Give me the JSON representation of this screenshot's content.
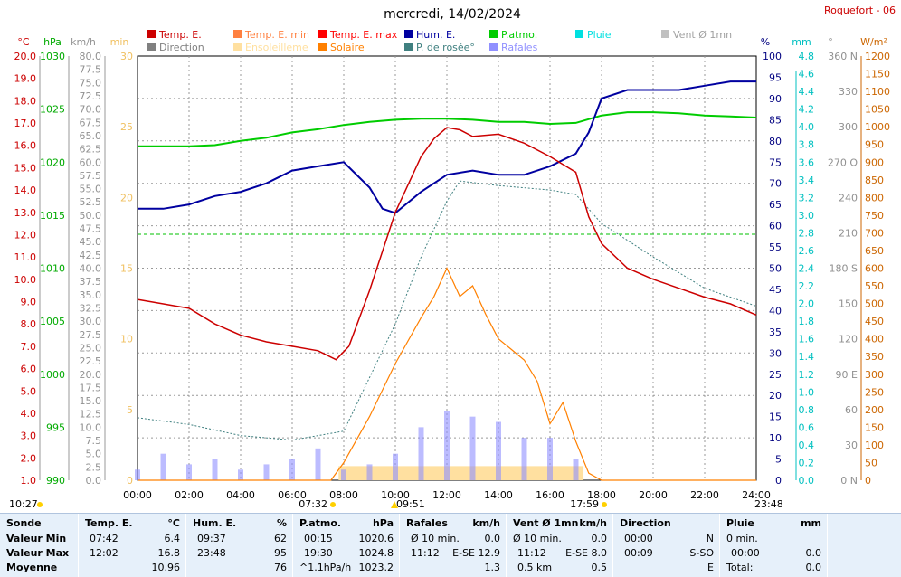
{
  "header": {
    "title": "mercredi, 14/02/2024",
    "station": "Roquefort - 06"
  },
  "legend": [
    {
      "label": "Temp. E.",
      "color": "#cc0000"
    },
    {
      "label": "Temp. E. min",
      "color": "#ff8040"
    },
    {
      "label": "Temp. E. max",
      "color": "#ff0000"
    },
    {
      "label": "Hum. E.",
      "color": "#0000a0"
    },
    {
      "label": "P.atmo.",
      "color": "#00cc00"
    },
    {
      "label": "Pluie",
      "color": "#00e0e0"
    },
    {
      "label": "Vent Ø 1mn",
      "color": "#c0c0c0"
    },
    {
      "label": "Direction",
      "color": "#808080"
    },
    {
      "label": "Ensoleilleme",
      "color": "#ffe0a0"
    },
    {
      "label": "Solaire",
      "color": "#ff8000"
    },
    {
      "label": "P. de rosée°",
      "color": "#408080"
    },
    {
      "label": "Rafales",
      "color": "#9090ff"
    }
  ],
  "axes": {
    "temp": {
      "unit": "°C",
      "ticks": [
        "20.0",
        "19.0",
        "18.0",
        "17.0",
        "16.0",
        "15.0",
        "14.0",
        "13.0",
        "12.0",
        "11.0",
        "10.0",
        "9.0",
        "8.0",
        "7.0",
        "6.0",
        "5.0",
        "4.0",
        "3.0",
        "2.0",
        "1.0"
      ],
      "color": "#cc0000"
    },
    "press": {
      "unit": "hPa",
      "ticks": [
        "1030",
        "1025",
        "1020",
        "1015",
        "1010",
        "1005",
        "1000",
        "995",
        "990"
      ],
      "color": "#00aa00"
    },
    "wind": {
      "unit": "km/h",
      "ticks": [
        "80.0",
        "77.5",
        "75.0",
        "72.5",
        "70.0",
        "67.5",
        "65.0",
        "62.5",
        "60.0",
        "57.5",
        "55.0",
        "52.5",
        "50.0",
        "47.5",
        "45.0",
        "42.5",
        "40.0",
        "37.5",
        "35.0",
        "32.5",
        "30.0",
        "27.5",
        "25.0",
        "22.5",
        "20.0",
        "17.5",
        "15.0",
        "12.5",
        "10.0",
        "7.5",
        "5.0",
        "2.5",
        "0.0"
      ],
      "color": "#909090"
    },
    "min": {
      "unit": "min",
      "ticks": [
        "30",
        "25",
        "20",
        "15",
        "10",
        "5",
        "0"
      ],
      "color": "#f0c060"
    },
    "hum": {
      "unit": "%",
      "ticks": [
        "100",
        "95",
        "90",
        "85",
        "80",
        "75",
        "70",
        "65",
        "60",
        "55",
        "50",
        "45",
        "40",
        "35",
        "30",
        "25",
        "20",
        "15",
        "10",
        "5",
        "0"
      ],
      "color": "#000080"
    },
    "rain": {
      "unit": "mm",
      "ticks": [
        "4.8",
        "4.6",
        "4.4",
        "4.2",
        "4.0",
        "3.8",
        "3.6",
        "3.4",
        "3.2",
        "3.0",
        "2.8",
        "2.6",
        "2.4",
        "2.2",
        "2.0",
        "1.8",
        "1.6",
        "1.4",
        "1.2",
        "1.0",
        "0.8",
        "0.6",
        "0.4",
        "0.2",
        "0.0"
      ],
      "color": "#00c0c0"
    },
    "dir": {
      "unit": "°",
      "ticks": [
        "360 N",
        "330",
        "300",
        "270 O",
        "240",
        "210",
        "180 S",
        "150",
        "120",
        "90 E",
        "60",
        "30",
        "0 N"
      ],
      "color": "#909090"
    },
    "solar": {
      "unit": "W/m²",
      "ticks": [
        "1200",
        "1150",
        "1100",
        "1050",
        "1000",
        "950",
        "900",
        "850",
        "800",
        "750",
        "700",
        "650",
        "600",
        "550",
        "500",
        "450",
        "400",
        "350",
        "300",
        "250",
        "200",
        "150",
        "100",
        "50",
        "0"
      ],
      "color": "#cc6600"
    },
    "time": [
      "00:00",
      "02:00",
      "04:00",
      "06:00",
      "08:00",
      "10:00",
      "12:00",
      "14:00",
      "16:00",
      "18:00",
      "20:00",
      "22:00",
      "24:00"
    ]
  },
  "events": {
    "left": "10:27",
    "sunrise": "07:32",
    "e1": "09:51",
    "sunset": "17:59",
    "right": "23:48"
  },
  "chart_data": {
    "type": "line",
    "x_unit": "hours",
    "series": [
      {
        "name": "Temp. E.",
        "unit": "°C",
        "x": [
          0,
          1,
          1.5,
          2,
          3,
          4,
          5,
          6,
          7,
          7.7,
          8.2,
          9,
          10,
          11,
          11.5,
          12,
          12.5,
          13,
          14,
          15,
          16,
          17,
          17.5,
          18,
          19,
          20,
          21,
          22,
          23,
          24
        ],
        "values": [
          9.1,
          8.9,
          8.8,
          8.7,
          8.0,
          7.5,
          7.2,
          7.0,
          6.8,
          6.4,
          7.0,
          9.5,
          13.0,
          15.5,
          16.3,
          16.8,
          16.7,
          16.4,
          16.5,
          16.1,
          15.5,
          14.8,
          12.8,
          11.6,
          10.5,
          10.0,
          9.6,
          9.2,
          8.9,
          8.4
        ]
      },
      {
        "name": "Hum. E.",
        "unit": "%",
        "x": [
          0,
          1,
          2,
          3,
          4,
          5,
          6,
          7,
          8,
          9,
          9.5,
          10,
          11,
          12,
          13,
          14,
          15,
          16,
          17,
          17.5,
          18,
          19,
          20,
          21,
          22,
          23,
          24
        ],
        "values": [
          64,
          64,
          65,
          67,
          68,
          70,
          73,
          74,
          75,
          69,
          64,
          63,
          68,
          72,
          73,
          72,
          72,
          74,
          77,
          82,
          90,
          92,
          92,
          92,
          93,
          94,
          94
        ]
      },
      {
        "name": "P.atmo.",
        "unit": "hPa",
        "x": [
          0,
          1,
          2,
          3,
          4,
          5,
          6,
          7,
          8,
          9,
          10,
          11,
          12,
          13,
          14,
          15,
          16,
          17,
          18,
          19,
          20,
          21,
          22,
          23,
          24
        ],
        "values": [
          1021.5,
          1021.5,
          1021.5,
          1021.6,
          1022.0,
          1022.3,
          1022.8,
          1023.1,
          1023.5,
          1023.8,
          1024.0,
          1024.1,
          1024.1,
          1024.0,
          1023.8,
          1023.8,
          1023.6,
          1023.7,
          1024.4,
          1024.7,
          1024.7,
          1024.6,
          1024.4,
          1024.3,
          1024.2
        ]
      },
      {
        "name": "Solaire",
        "unit": "W/m²",
        "x": [
          0,
          7.5,
          8,
          9,
          10,
          11,
          11.5,
          12,
          12.5,
          13,
          13.5,
          14,
          14.5,
          15,
          15.5,
          16,
          16.5,
          17,
          17.5,
          18,
          24
        ],
        "values": [
          0,
          0,
          50,
          180,
          330,
          460,
          520,
          600,
          520,
          550,
          470,
          400,
          370,
          340,
          280,
          160,
          220,
          110,
          20,
          0,
          0
        ]
      },
      {
        "name": "P. de rosée°",
        "unit": "°C",
        "x": [
          0,
          2,
          4,
          6,
          8,
          10,
          11,
          12,
          12.5,
          14,
          16,
          17,
          18,
          20,
          22,
          24
        ],
        "values": [
          3.8,
          3.5,
          3.0,
          2.8,
          3.2,
          8.0,
          11.0,
          13.5,
          14.4,
          14.2,
          14.0,
          13.8,
          12.5,
          11.0,
          9.6,
          8.8
        ]
      },
      {
        "name": "Rafales",
        "unit": "km/h",
        "x": [
          0,
          1,
          2,
          3,
          4,
          5,
          6,
          7,
          8,
          9,
          10,
          11,
          12,
          13,
          14,
          15,
          16,
          17,
          18,
          24
        ],
        "values": [
          2,
          5,
          3,
          4,
          2,
          3,
          4,
          6,
          2,
          3,
          5,
          10,
          13,
          12,
          11,
          8,
          8,
          4,
          0,
          0
        ]
      }
    ],
    "ylim_temp": [
      1,
      20
    ],
    "ylim_press": [
      990,
      1030
    ],
    "ylim_hum": [
      0,
      100
    ],
    "ylim_solar": [
      0,
      1200
    ],
    "grid": true
  },
  "summary": {
    "sonde": {
      "title": "Sonde",
      "r1": "Valeur Min",
      "r2": "Valeur Max",
      "r3": "Moyenne"
    },
    "temp": {
      "title": "Temp. E.",
      "unit": "°C",
      "min_t": "07:42",
      "min_v": "6.4",
      "max_t": "12:02",
      "max_v": "16.8",
      "avg": "10.96"
    },
    "hum": {
      "title": "Hum. E.",
      "unit": "%",
      "min_t": "09:37",
      "min_v": "62",
      "max_t": "23:48",
      "max_v": "95",
      "avg": "76"
    },
    "press": {
      "title": "P.atmo.",
      "unit": "hPa",
      "min_t": "00:15",
      "min_v": "1020.6",
      "max_t": "19:30",
      "max_v": "1024.8",
      "trend": "^1.1hPa/h",
      "avg": "1023.2"
    },
    "gust": {
      "title": "Rafales",
      "unit": "km/h",
      "r1a": "Ø 10 min.",
      "r1b": "0.0",
      "r2a": "11:12",
      "r2b": "E-SE 12.9",
      "avg": "1.3"
    },
    "wind": {
      "title": "Vent Ø 1mn",
      "unit": "km/h",
      "r1a": "Ø 10 min.",
      "r1b": "0.0",
      "r2a": "11:12",
      "r2b": "E-SE 8.0",
      "r3a": "0.5 km",
      "avg": "0.5"
    },
    "dir": {
      "title": "Direction",
      "r1a": "00:00",
      "r1b": "N",
      "r2a": "00:09",
      "r2b": "S-SO",
      "r3b": "E"
    },
    "rain": {
      "title": "Pluie",
      "unit": "mm",
      "r1a": "0 min.",
      "r2a": "00:00",
      "r2b": "0.0",
      "r3a": "Total:",
      "r3b": "0.0"
    }
  }
}
